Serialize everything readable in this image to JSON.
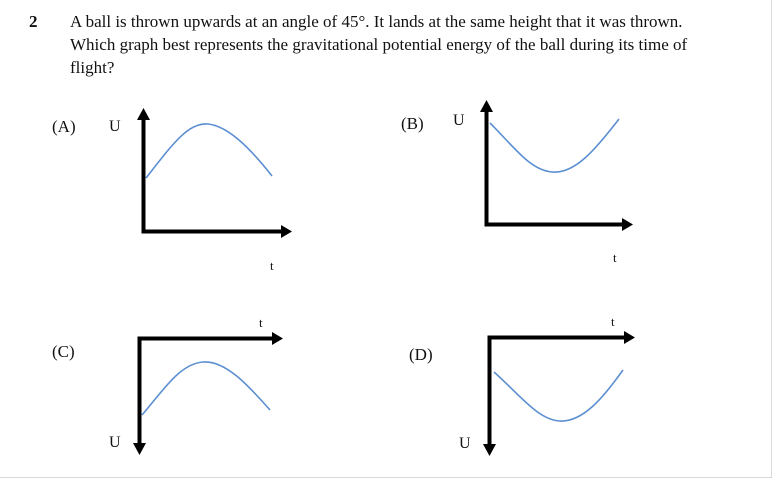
{
  "question": {
    "number": "2",
    "lines": [
      "A ball is thrown upwards at an angle of 45°. It lands at the same height that it was thrown.",
      "Which graph best represents the gravitational potential energy of the ball during its time of",
      "flight?"
    ]
  },
  "options": [
    {
      "label": "(A)",
      "y_axis": "U",
      "x_axis": "t",
      "y_direction": "up",
      "curve": "hump"
    },
    {
      "label": "(B)",
      "y_axis": "U",
      "x_axis": "t",
      "y_direction": "up",
      "curve": "valley"
    },
    {
      "label": "(C)",
      "y_axis": "U",
      "x_axis": "t",
      "y_direction": "down",
      "curve": "hump"
    },
    {
      "label": "(D)",
      "y_axis": "U",
      "x_axis": "t",
      "y_direction": "down",
      "curve": "valley"
    }
  ],
  "colors": {
    "axis": "#000000",
    "curve": "#5b8fd1"
  }
}
